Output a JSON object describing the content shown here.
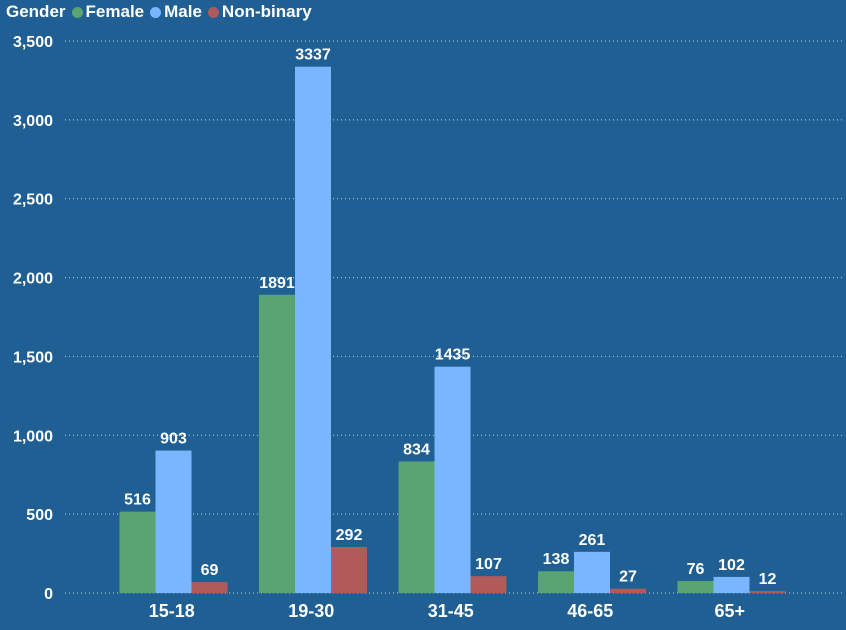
{
  "chart_data": {
    "type": "bar",
    "legend_title": "Gender",
    "legend_position": "top-left",
    "categories": [
      "15-18",
      "19-30",
      "31-45",
      "46-65",
      "65+"
    ],
    "series": [
      {
        "name": "Female",
        "color": "#5aa473",
        "values": [
          516,
          1891,
          834,
          138,
          76
        ]
      },
      {
        "name": "Male",
        "color": "#7ab6ff",
        "values": [
          903,
          3337,
          1435,
          261,
          102
        ]
      },
      {
        "name": "Non-binary",
        "color": "#b05a5a",
        "values": [
          69,
          292,
          107,
          27,
          12
        ]
      }
    ],
    "y_ticks": [
      0,
      500,
      1000,
      1500,
      2000,
      2500,
      3000,
      3500
    ],
    "y_tick_labels": [
      "0",
      "500",
      "1,000",
      "1,500",
      "2,000",
      "2,500",
      "3,000",
      "3,500"
    ],
    "ylim": [
      0,
      3500
    ],
    "grid": true,
    "title": "",
    "xlabel": "",
    "ylabel": ""
  }
}
